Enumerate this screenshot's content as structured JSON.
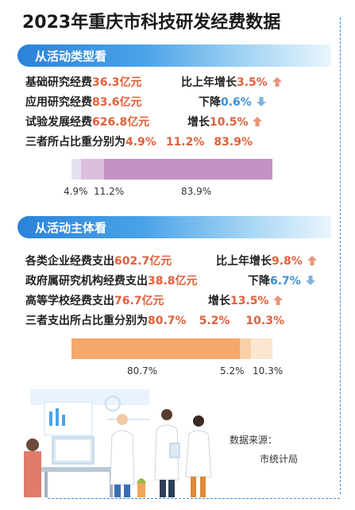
{
  "title": "2023年重庆市科技研发经费数据",
  "section1": {
    "heading": "从活动类型看",
    "rows": [
      {
        "label": "基础研究经费",
        "value": "36.3亿元",
        "change_label": "比上年增长",
        "change": "3.5%",
        "direction": "up"
      },
      {
        "label": "应用研究经费",
        "value": "83.6亿元",
        "change_label": "下降",
        "change": "0.6%",
        "direction": "down"
      },
      {
        "label": "试验发展经费",
        "value": "626.8亿元",
        "change_label": "增长",
        "change": "10.5%",
        "direction": "up"
      }
    ],
    "share_label": "三者所占比重分别为",
    "shares": [
      "4.9%",
      "11.2%",
      "83.9%"
    ],
    "bar": {
      "values": [
        4.9,
        11.2,
        83.9
      ],
      "labels": [
        "4.9%",
        "11.2%",
        "83.9%"
      ],
      "colors": [
        "#e6e1ef",
        "#dcbfdd",
        "#c491c4"
      ]
    }
  },
  "section2": {
    "heading": "从活动主体看",
    "rows": [
      {
        "label": "各类企业经费支出",
        "value": "602.7亿元",
        "change_label": "比上年增长",
        "change": "9.8%",
        "direction": "up"
      },
      {
        "label": "政府属研究机构经费支出",
        "value": "38.8亿元",
        "change_label": "下降",
        "change": "6.7%",
        "direction": "down"
      },
      {
        "label": "高等学校经费支出",
        "value": "76.7亿元",
        "change_label": "增长",
        "change": "13.5%",
        "direction": "up"
      }
    ],
    "share_label": "三者支出所占比重分别为",
    "shares": [
      "80.7%",
      "5.2%",
      "10.3%"
    ],
    "bar": {
      "values": [
        80.7,
        5.2,
        10.3
      ],
      "labels": [
        "80.7%",
        "5.2%",
        "10.3%"
      ],
      "colors": [
        "#f4a86c",
        "#f8cfa8",
        "#fbe6cf"
      ]
    }
  },
  "source": {
    "line1": "数据来源：",
    "line2": "市统计局"
  },
  "colors": {
    "accent_orange": "#e0603a",
    "accent_blue": "#3a8fd8",
    "arrow_up": "#e8967a",
    "arrow_down": "#7db3e0"
  }
}
